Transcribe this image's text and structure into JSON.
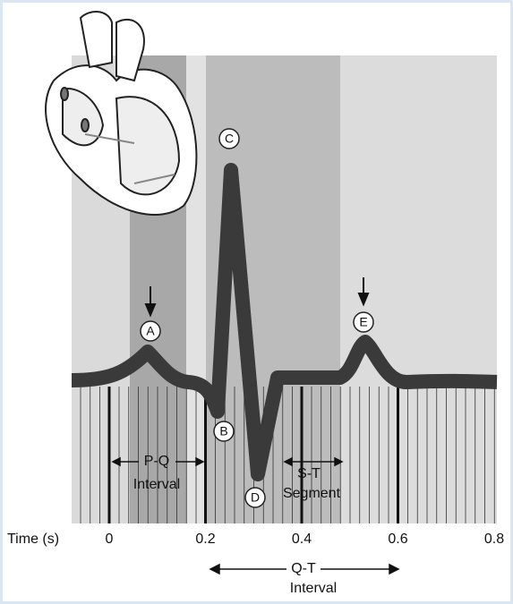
{
  "axis": {
    "label": "Time (s)",
    "ticks": [
      0,
      0.2,
      0.4,
      0.6,
      0.8
    ]
  },
  "points": [
    {
      "label": "A"
    },
    {
      "label": "B"
    },
    {
      "label": "C"
    },
    {
      "label": "D"
    },
    {
      "label": "E"
    }
  ],
  "intervals": {
    "pq": {
      "name": "P-Q",
      "kind": "Interval"
    },
    "st": {
      "name": "S-T",
      "kind": "Segment"
    },
    "qt": {
      "name": "Q-T",
      "kind": "Interval"
    }
  }
}
